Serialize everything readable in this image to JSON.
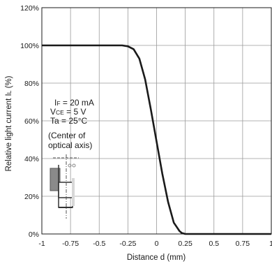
{
  "chart_data": {
    "type": "line",
    "title": "",
    "xlabel": "Distance d (mm)",
    "ylabel": "Relative light current IL (%)",
    "ylabel_main": "Relative light current I",
    "ylabel_sub": "L",
    "ylabel_unit": " (%)",
    "xlim": [
      -1,
      1
    ],
    "ylim": [
      0,
      120
    ],
    "x_ticks": [
      -1,
      -0.75,
      -0.5,
      -0.25,
      0,
      0.25,
      0.5,
      0.75,
      1
    ],
    "x_tick_labels": [
      "-1",
      "-0.75",
      "-0.5",
      "-0.25",
      "0",
      "0.25",
      "0.5",
      "0.75",
      "1"
    ],
    "y_ticks": [
      0,
      20,
      40,
      60,
      80,
      100,
      120
    ],
    "y_tick_labels": [
      "0%",
      "20%",
      "40%",
      "60%",
      "80%",
      "100%",
      "120%"
    ],
    "grid": true,
    "series": [
      {
        "x": [
          -1,
          -0.5,
          -0.3,
          -0.25,
          -0.2,
          -0.15,
          -0.1,
          -0.05,
          0,
          0.05,
          0.1,
          0.15,
          0.2,
          0.22,
          0.25,
          0.3,
          0.5,
          1
        ],
        "y": [
          100,
          100,
          100,
          99.5,
          98,
          93,
          82,
          66,
          49,
          32,
          17,
          6,
          1.5,
          0.5,
          0,
          0,
          0,
          0
        ]
      }
    ],
    "annotations": {
      "conditions": [
        {
          "sym": "I",
          "sub": "F",
          "rest": " = 20 mA"
        },
        {
          "sym": "V",
          "sub": "CE",
          "rest": " = 5 V"
        },
        {
          "sym": "Ta",
          "sub": "",
          "rest": " = 25°C"
        }
      ],
      "note_line1": "(Center of",
      "note_line2": "optical axis)"
    }
  }
}
